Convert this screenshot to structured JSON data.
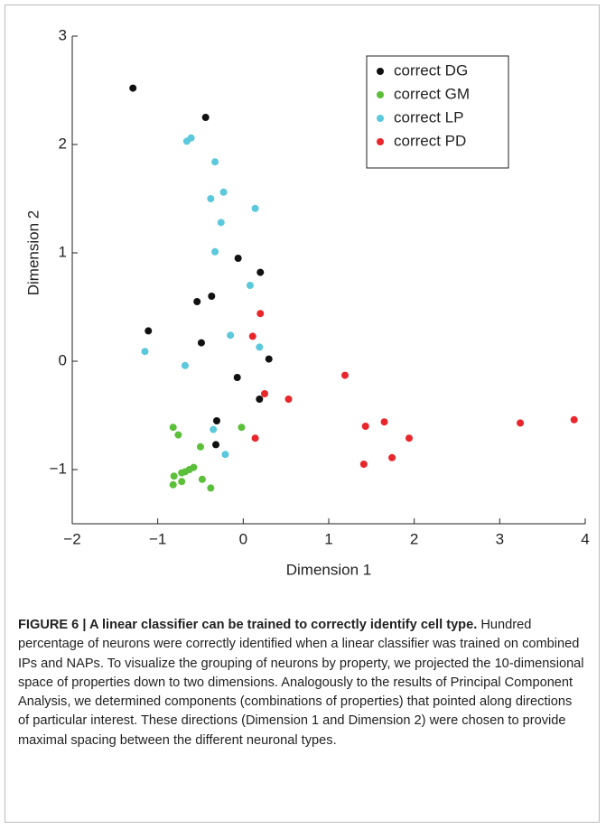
{
  "chart_data": {
    "type": "scatter",
    "x_label": "Dimension 1",
    "y_label": "Dimension 2",
    "xlim": [
      -2,
      4
    ],
    "xticks": [
      {
        "value": -2,
        "label": "−2"
      },
      {
        "value": -1,
        "label": "−1"
      },
      0,
      1,
      2,
      3,
      4
    ],
    "ylim": [
      -1.5,
      3
    ],
    "yticks": [
      {
        "value": -1,
        "label": "−1"
      },
      0,
      1,
      2,
      3
    ],
    "legend": "upper right",
    "series": [
      {
        "name": "correct DG",
        "color": "#111111",
        "x": [
          -1.29,
          -0.44,
          -0.06,
          0.2,
          -0.54,
          -0.37,
          -1.11,
          -0.49,
          0.3,
          -0.07,
          0.19,
          -0.31,
          -0.32
        ],
        "values": [
          2.52,
          2.25,
          0.95,
          0.82,
          0.55,
          0.6,
          0.28,
          0.17,
          0.02,
          -0.15,
          -0.35,
          -0.55,
          -0.77
        ]
      },
      {
        "name": "correct GM",
        "color": "#5cbf3a",
        "x": [
          -0.82,
          -0.76,
          -0.02,
          -0.5,
          -0.81,
          -0.72,
          -0.68,
          -0.63,
          -0.58,
          -0.48,
          -0.82,
          -0.72,
          -0.38
        ],
        "values": [
          -0.61,
          -0.68,
          -0.61,
          -0.79,
          -1.06,
          -1.03,
          -1.02,
          -1.0,
          -0.98,
          -1.09,
          -1.14,
          -1.11,
          -1.17
        ]
      },
      {
        "name": "correct LP",
        "color": "#5bc8dc",
        "x": [
          -0.66,
          -0.61,
          -0.33,
          -0.23,
          -0.38,
          0.14,
          -0.26,
          -0.33,
          0.08,
          -0.15,
          0.19,
          -1.15,
          -0.68,
          -0.35,
          -0.21
        ],
        "values": [
          2.03,
          2.06,
          1.84,
          1.56,
          1.5,
          1.41,
          1.28,
          1.01,
          0.7,
          0.24,
          0.13,
          0.09,
          -0.04,
          -0.63,
          -0.86
        ]
      },
      {
        "name": "correct PD",
        "color": "#e8262b",
        "x": [
          0.2,
          0.11,
          1.19,
          0.25,
          0.53,
          0.14,
          1.43,
          1.65,
          1.94,
          1.74,
          1.41,
          3.24,
          3.87
        ],
        "values": [
          0.44,
          0.23,
          -0.13,
          -0.3,
          -0.35,
          -0.71,
          -0.6,
          -0.56,
          -0.71,
          -0.89,
          -0.95,
          -0.57,
          -0.54
        ]
      }
    ]
  },
  "caption": {
    "title": "FIGURE 6 | A linear classifier can be trained to correctly identify cell type.",
    "text": "Hundred percentage of neurons were correctly identified when a linear classifier was trained on combined IPs and NAPs. To visualize the grouping of neurons by property, we projected the 10-dimensional space of properties down to two dimensions. Analogously to the results of Principal Component Analysis, we determined components (combinations of properties) that pointed along directions of particular interest. These directions (Dimension 1 and Dimension 2) were chosen to provide maximal spacing between the different neuronal types."
  }
}
